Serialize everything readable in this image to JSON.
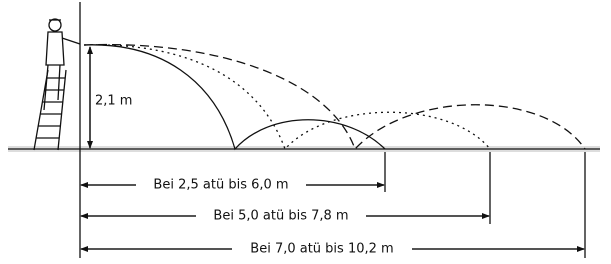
{
  "height_label": "2,1 m",
  "ranges": [
    {
      "label": "Bei 2,5 atü bis 6,0 m"
    },
    {
      "label": "Bei 5,0 atü bis 7,8 m"
    },
    {
      "label": "Bei 7,0 atü bis 10,2 m"
    }
  ]
}
